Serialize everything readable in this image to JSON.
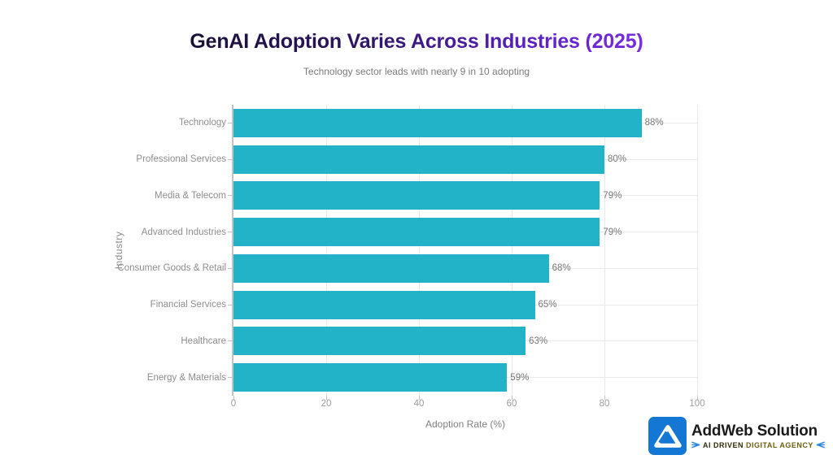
{
  "header": {
    "title": "GenAI Adoption Varies Across Industries (2025)",
    "subtitle": "Technology sector leads with nearly 9 in 10 adopting",
    "title_gradient_start": "#17102d",
    "title_gradient_end": "#8531e8"
  },
  "chart_data": {
    "type": "bar",
    "orientation": "horizontal",
    "title": "GenAI Adoption Varies Across Industries (2025)",
    "subtitle": "Technology sector leads with nearly 9 in 10 adopting",
    "categories": [
      "Technology",
      "Professional Services",
      "Media & Telecom",
      "Advanced Industries",
      "Consumer Goods & Retail",
      "Financial Services",
      "Healthcare",
      "Energy & Materials"
    ],
    "values": [
      88,
      80,
      79,
      79,
      68,
      65,
      63,
      59
    ],
    "value_labels": [
      "88%",
      "80%",
      "79%",
      "79%",
      "68%",
      "65%",
      "63%",
      "59%"
    ],
    "xlabel": "Adoption Rate (%)",
    "ylabel": "Industry",
    "xlim": [
      0,
      100
    ],
    "xticks": [
      0,
      20,
      40,
      60,
      80,
      100
    ],
    "grid": true,
    "legend": false,
    "bar_color": "#22b3c8",
    "gridline_color": "#e9e9e9",
    "axis_line_color": "#c3c3c3",
    "tick_label_color": "#9c9c9c",
    "category_label_color": "#8d8d8d",
    "value_label_color": "#767676"
  },
  "branding": {
    "name": "AddWeb Solution",
    "tagline_ai": "AI DRIVEN",
    "tagline_agency": "DIGITAL AGENCY",
    "tagline": "AI DRIVEN DIGITAL AGENCY",
    "logo_bg": "#1577d4",
    "wind_icon_color": "#2e86e0"
  }
}
